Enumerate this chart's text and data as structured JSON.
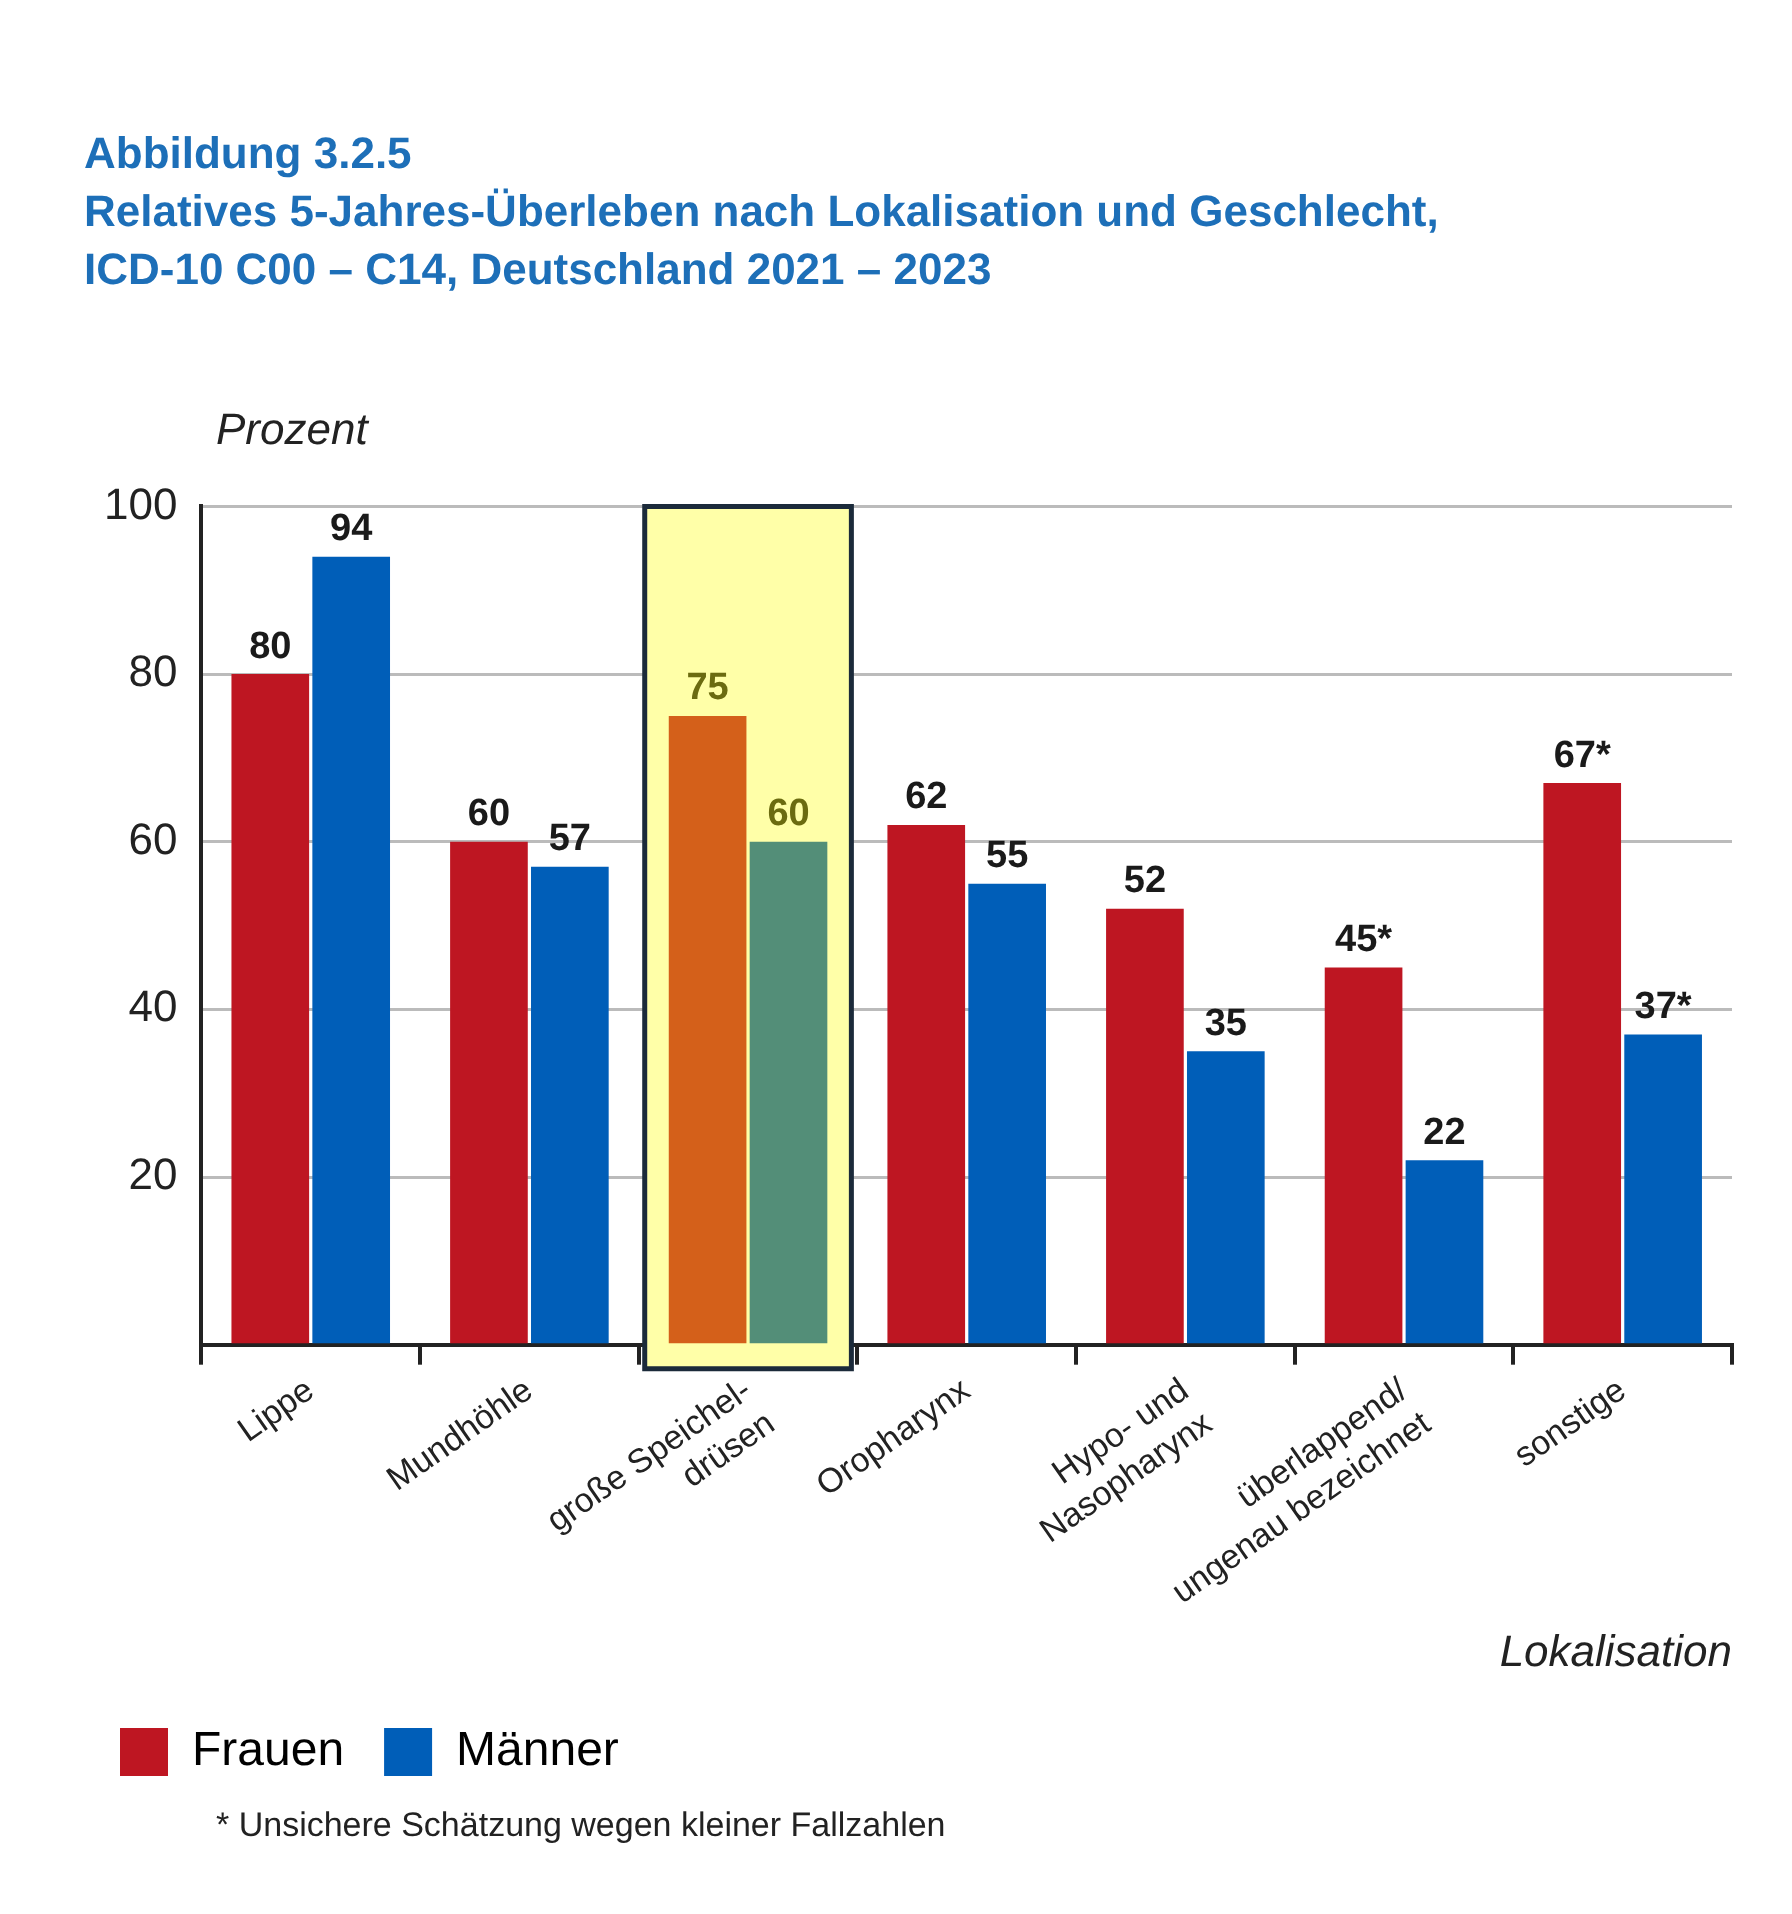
{
  "chart_data": {
    "type": "bar",
    "title": "Abbildung 3.2.5",
    "subtitle": "Relatives 5-Jahres-Überleben nach Lokalisation und Geschlecht,\nICD-10 C00 – C14, Deutschland 2021 – 2023",
    "ylabel": "Prozent",
    "xlabel": "Lokalisation",
    "categories": [
      "Lippe",
      "Mundhöhle",
      "große Speichel-\ndrüsen",
      "Oropharynx",
      "Hypo- und\nNasopharynx",
      "überlappend/\nungenau bezeichnet",
      "sonstige"
    ],
    "series": [
      {
        "name": "Frauen",
        "color": "#be1622",
        "colors": [
          "#be1622",
          "#be1622",
          "#d4601a",
          "#be1622",
          "#be1622",
          "#be1622",
          "#be1622"
        ],
        "values": [
          80,
          60,
          75,
          62,
          52,
          45,
          67
        ],
        "value_labels": [
          "80",
          "60",
          "75",
          "62",
          "52",
          "45*",
          "67*"
        ]
      },
      {
        "name": "Männer",
        "color": "#005eb8",
        "colors": [
          "#005eb8",
          "#005eb8",
          "#538e78",
          "#005eb8",
          "#005eb8",
          "#005eb8",
          "#005eb8"
        ],
        "values": [
          94,
          57,
          60,
          55,
          35,
          22,
          37
        ],
        "value_labels": [
          "94",
          "57",
          "60",
          "55",
          "35",
          "22",
          "37*"
        ]
      }
    ],
    "ylim": [
      0,
      100
    ],
    "yticks": [
      {
        "value": 0,
        "label": null
      },
      20,
      40,
      60,
      80,
      100
    ],
    "grid": "y",
    "legend": "bottom left",
    "bands": [
      {
        "axis": "x",
        "from": "große Speichel-\ndrüsen",
        "to": "große Speichel-\ndrüsen",
        "color": "#ffffa8"
      }
    ],
    "annotations": [
      "* Unsichere Schätzung wegen kleiner Fallzahlen"
    ]
  }
}
